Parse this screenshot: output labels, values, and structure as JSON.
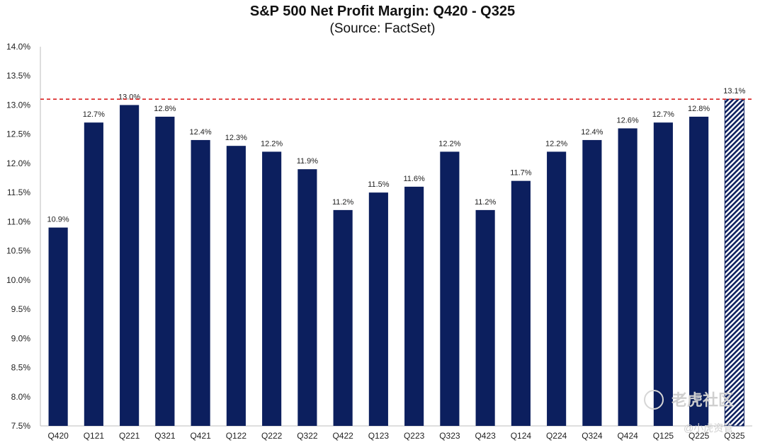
{
  "chart_data": {
    "type": "bar",
    "title": "S&P 500 Net Profit Margin: Q420 - Q325",
    "subtitle": "(Source: FactSet)",
    "categories": [
      "Q420",
      "Q121",
      "Q221",
      "Q321",
      "Q421",
      "Q122",
      "Q222",
      "Q322",
      "Q422",
      "Q123",
      "Q223",
      "Q323",
      "Q423",
      "Q124",
      "Q224",
      "Q324",
      "Q424",
      "Q125",
      "Q225",
      "Q325"
    ],
    "values": [
      10.9,
      12.7,
      13.0,
      12.8,
      12.4,
      12.3,
      12.2,
      11.9,
      11.2,
      11.5,
      11.6,
      12.2,
      11.2,
      11.7,
      12.2,
      12.4,
      12.6,
      12.7,
      12.8,
      13.1
    ],
    "data_labels": [
      "10.9%",
      "12.7%",
      "13.0%",
      "12.8%",
      "12.4%",
      "12.3%",
      "12.2%",
      "11.9%",
      "11.2%",
      "11.5%",
      "11.6%",
      "12.2%",
      "11.2%",
      "11.7%",
      "12.2%",
      "12.4%",
      "12.6%",
      "12.7%",
      "12.8%",
      "13.1%"
    ],
    "estimate_flags": [
      false,
      false,
      false,
      false,
      false,
      false,
      false,
      false,
      false,
      false,
      false,
      false,
      false,
      false,
      false,
      false,
      false,
      false,
      false,
      true
    ],
    "ylim": [
      7.5,
      14.0
    ],
    "yticks": [
      7.5,
      8.0,
      8.5,
      9.0,
      9.5,
      10.0,
      10.5,
      11.0,
      11.5,
      12.0,
      12.5,
      13.0,
      13.5,
      14.0
    ],
    "ytick_labels": [
      "7.5%",
      "8.0%",
      "8.5%",
      "9.0%",
      "9.5%",
      "10.0%",
      "10.5%",
      "11.0%",
      "11.5%",
      "12.0%",
      "12.5%",
      "13.0%",
      "13.5%",
      "14.0%"
    ],
    "reference_line": {
      "value": 13.1,
      "style": "dashed",
      "color": "#d92020"
    },
    "xlabel": "",
    "ylabel": "",
    "grid": false,
    "colors": {
      "bar": "#0c1f5e",
      "estimate_bar": "#0c1f5e"
    }
  },
  "watermark": {
    "main": "老虎社区",
    "sub": "@小虎资管"
  }
}
